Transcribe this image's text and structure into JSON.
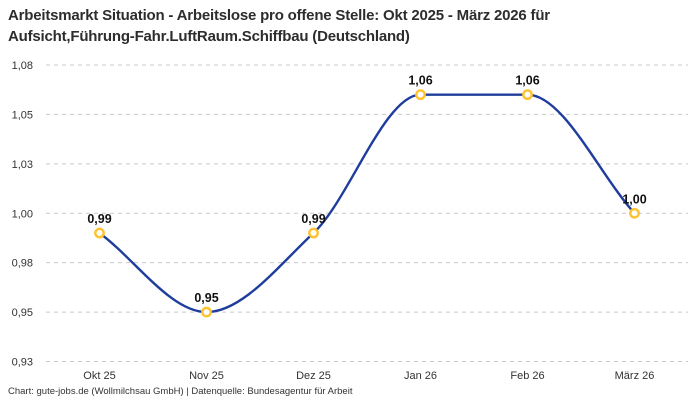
{
  "title": {
    "line1": "Arbeitsmarkt Situation - Arbeitslose pro offene Stelle: Okt 2025 - März 2026 für",
    "line2": "Aufsicht,Führung-Fahr.LuftRaum.Schiffbau (Deutschland)"
  },
  "footer": "Chart: gute-jobs.de (Wollmilchsau GmbH) | Datenquelle: Bundesagentur für Arbeit",
  "chart_data": {
    "type": "line",
    "title": "Arbeitsmarkt Situation - Arbeitslose pro offene Stelle: Okt 2025 - März 2026 für Aufsicht,Führung-Fahr.LuftRaum.Schiffbau (Deutschland)",
    "categories": [
      "Okt 25",
      "Nov 25",
      "Dez 25",
      "Jan 26",
      "Feb 26",
      "März 26"
    ],
    "values": [
      0.99,
      0.95,
      0.99,
      1.06,
      1.06,
      1.0
    ],
    "point_labels": [
      "0,99",
      "0,95",
      "0,99",
      "1,06",
      "1,06",
      "1,00"
    ],
    "y_ticks": [
      {
        "value": 1.075,
        "label": "1,08"
      },
      {
        "value": 1.05,
        "label": "1,05"
      },
      {
        "value": 1.025,
        "label": "1,03"
      },
      {
        "value": 1.0,
        "label": "1,00"
      },
      {
        "value": 0.975,
        "label": "0,98"
      },
      {
        "value": 0.95,
        "label": "0,95"
      },
      {
        "value": 0.925,
        "label": "0,93"
      }
    ],
    "ylim": [
      0.925,
      1.075
    ],
    "xlabel": "",
    "ylabel": "",
    "legend": "none",
    "grid": "horizontal-dashed",
    "interpolation": "monotone-cubic",
    "colors": {
      "line": "#1f3d9c",
      "marker_stroke": "#ffc22e",
      "marker_fill": "#ffffff",
      "grid": "#c9c9c9",
      "axis_text": "#333333",
      "point_label": "#111111",
      "title_text": "#2d2d2d",
      "background": "#ffffff"
    }
  }
}
